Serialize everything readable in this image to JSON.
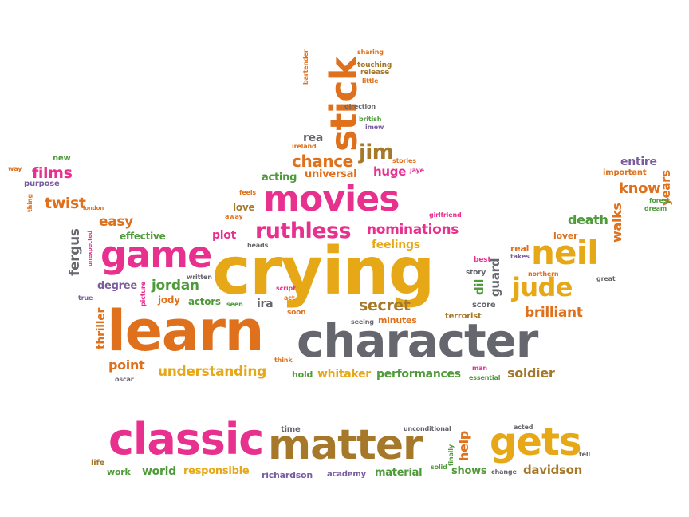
{
  "palette": {
    "orange": "#e0711c",
    "pink": "#e8308f",
    "gold": "#e6a817",
    "gray": "#66666e",
    "green": "#4f9a3a",
    "purple": "#7a5d9e",
    "brown": "#a5782a"
  },
  "words": {
    "stick": "stick",
    "sharing": "sharing",
    "bartender": "bartender",
    "touching": "touching",
    "release": "release",
    "little": "little",
    "direction": "direction",
    "british": "british",
    "imew": "imew",
    "rea": "rea",
    "ireland": "ireland",
    "jim": "jim",
    "stories": "stories",
    "jaye": "jaye",
    "chance": "chance",
    "acting": "acting",
    "universal": "universal",
    "huge": "huge",
    "new": "new",
    "films": "films",
    "way": "way",
    "purpose": "purpose",
    "thing": "thing",
    "twist": "twist",
    "london": "london",
    "easy": "easy",
    "movies": "movies",
    "feels": "feels",
    "love": "love",
    "away": "away",
    "fergus": "fergus",
    "unexpected": "unexpected",
    "effective": "effective",
    "plot": "plot",
    "ruthless": "ruthless",
    "nominations": "nominations",
    "heads": "heads",
    "feelings": "feelings",
    "girlfriend": "girlfriend",
    "entire": "entire",
    "important": "important",
    "know": "know",
    "years": "years",
    "forest": "forest",
    "dream": "dream",
    "death": "death",
    "walks": "walks",
    "lover": "lover",
    "real": "real",
    "takes": "takes",
    "game": "game",
    "crying": "crying",
    "neil": "neil",
    "best": "best",
    "story": "story",
    "dil": "dil",
    "guard": "guard",
    "northern": "northern",
    "jude": "jude",
    "great": "great",
    "degree": "degree",
    "jordan": "jordan",
    "written": "written",
    "picture": "picture",
    "script": "script",
    "act": "act",
    "true": "true",
    "jody": "jody",
    "actors": "actors",
    "seen": "seen",
    "ira": "ira",
    "soon": "soon",
    "secret": "secret",
    "seeing": "seeing",
    "minutes": "minutes",
    "score": "score",
    "terrorist": "terrorist",
    "brilliant": "brilliant",
    "thriller": "thriller",
    "learn": "learn",
    "character": "character",
    "think": "think",
    "point": "point",
    "understanding": "understanding",
    "hold": "hold",
    "whitaker": "whitaker",
    "performances": "performances",
    "man": "man",
    "essential": "essential",
    "soldier": "soldier",
    "oscar": "oscar",
    "time": "time",
    "unconditional": "unconditional",
    "acted": "acted",
    "help": "help",
    "finally": "finally",
    "classic": "classic",
    "matter": "matter",
    "gets": "gets",
    "tell": "tell",
    "life": "life",
    "work": "work",
    "world": "world",
    "responsible": "responsible",
    "richardson": "richardson",
    "academy": "academy",
    "material": "material",
    "solid": "solid",
    "shows": "shows",
    "change": "change",
    "davidson": "davidson"
  }
}
